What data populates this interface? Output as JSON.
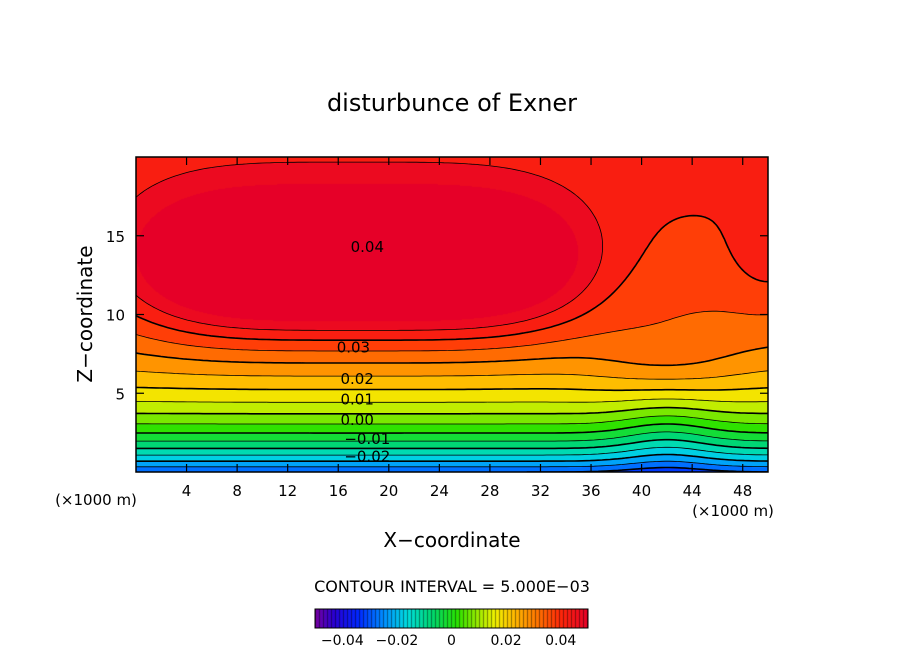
{
  "chart_data": {
    "type": "heatmap",
    "title": "disturbunce of Exner",
    "xlabel": "X−coordinate",
    "ylabel": "Z−coordinate",
    "x_unit": "(×1000 m)",
    "y_unit": "(×1000 m)",
    "xlim": [
      0,
      50
    ],
    "ylim": [
      0,
      20
    ],
    "x_ticks": [
      4,
      8,
      12,
      16,
      20,
      24,
      28,
      32,
      36,
      40,
      44,
      48
    ],
    "y_ticks": [
      5,
      10,
      15
    ],
    "x_tick_labels": [
      "4",
      "8",
      "12",
      "16",
      "20",
      "24",
      "28",
      "32",
      "36",
      "40",
      "44",
      "48"
    ],
    "y_tick_labels": [
      "5",
      "10",
      "15"
    ],
    "contour_interval_label": "CONTOUR INTERVAL = 5.000E−03",
    "contour_interval": 0.005,
    "contour_labels": [
      {
        "text": "0.04",
        "value": 0.04,
        "x": 18.3,
        "z": 14.3
      },
      {
        "text": "0.03",
        "value": 0.03,
        "x": 17.2,
        "z": 7.9
      },
      {
        "text": "0.02",
        "value": 0.02,
        "x": 17.5,
        "z": 5.9
      },
      {
        "text": "0.01",
        "value": 0.01,
        "x": 17.5,
        "z": 4.6
      },
      {
        "text": "0.00",
        "value": 0.0,
        "x": 17.5,
        "z": 3.3
      },
      {
        "text": "−0.01",
        "value": -0.01,
        "x": 18.3,
        "z": 2.1
      },
      {
        "text": "−0.02",
        "value": -0.02,
        "x": 18.3,
        "z": 1.0
      }
    ],
    "colorbar": {
      "range": [
        -0.05,
        0.05
      ],
      "tick_values": [
        -0.04,
        -0.02,
        0,
        0.02,
        0.04
      ],
      "tick_labels": [
        "−0.04",
        "−0.02",
        "0",
        "0.02",
        "0.04"
      ]
    }
  }
}
